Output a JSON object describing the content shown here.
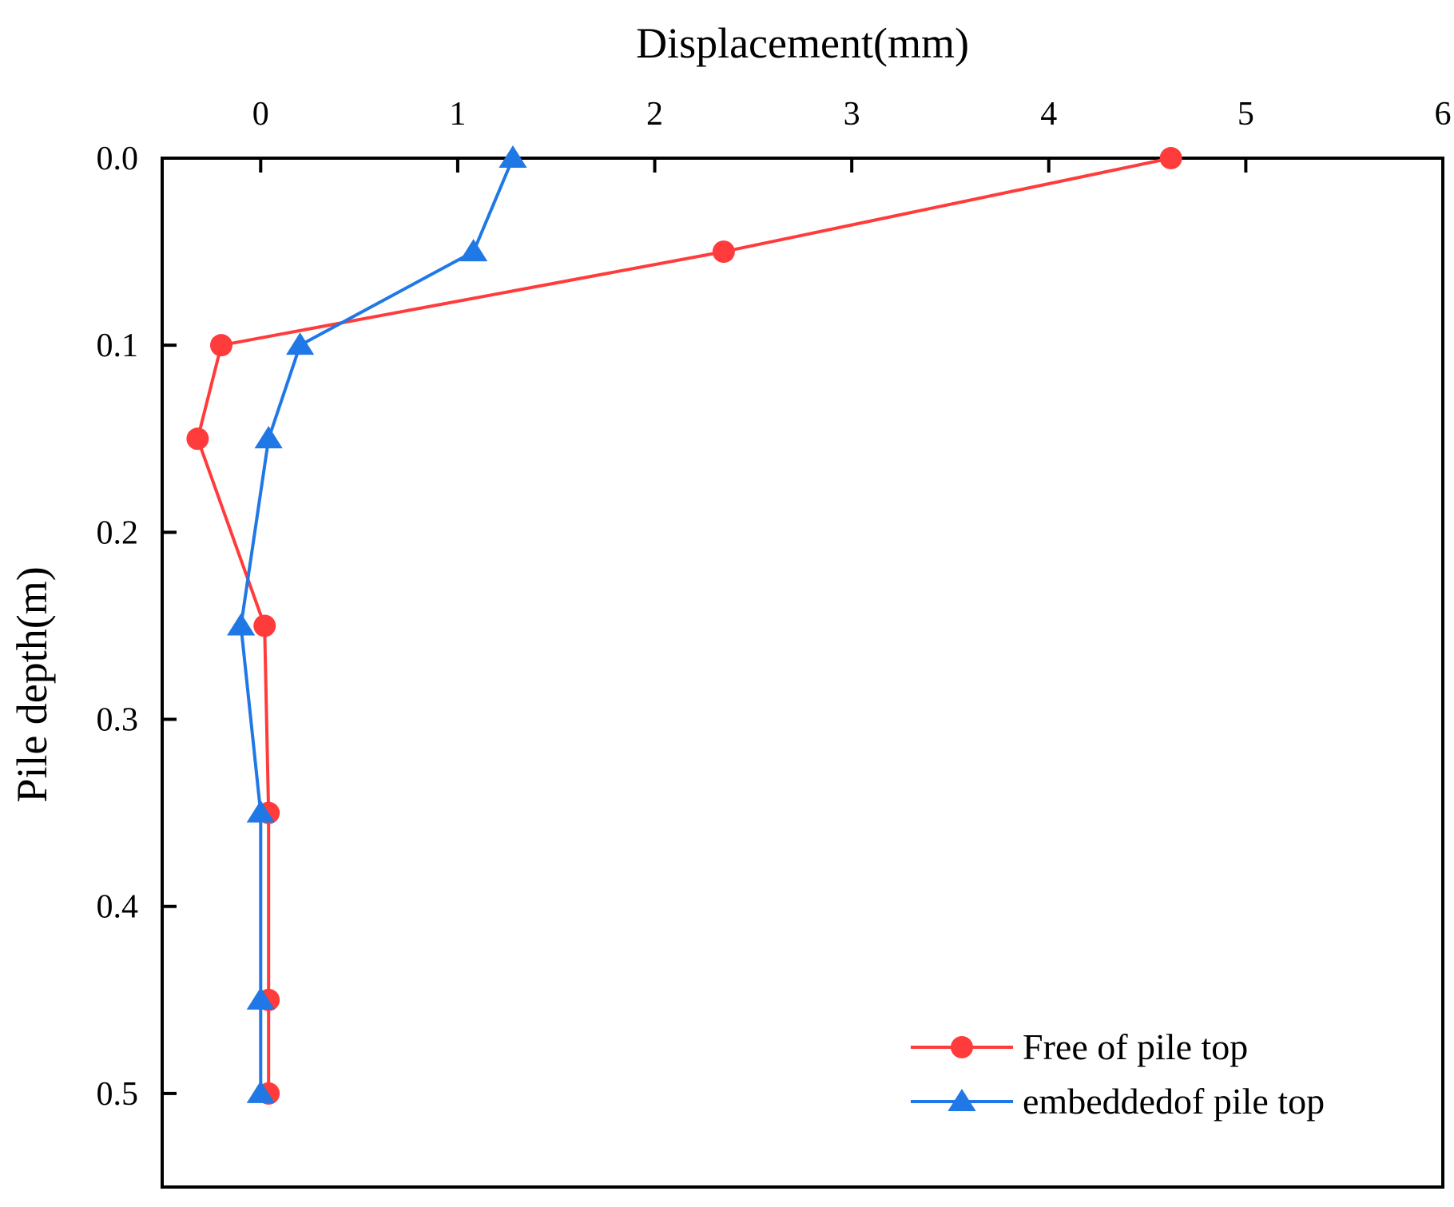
{
  "chart_data": {
    "type": "line",
    "orientation": "depth-profile",
    "xlabel": "Displacement(mm)",
    "ylabel": "Pile depth(m)",
    "xlim": [
      -0.5,
      6
    ],
    "ylim": [
      0.0,
      0.55
    ],
    "y_inverted": true,
    "x_axis_position": "top",
    "x_ticks": [
      0,
      1,
      2,
      3,
      4,
      5,
      6
    ],
    "y_ticks": [
      0.0,
      0.1,
      0.2,
      0.3,
      0.4,
      0.5
    ],
    "x_tick_labels": [
      "0",
      "1",
      "2",
      "3",
      "4",
      "5",
      "6"
    ],
    "y_tick_labels": [
      "0.0",
      "0.1",
      "0.2",
      "0.3",
      "0.4",
      "0.5"
    ],
    "legend_position": "bottom-right",
    "series": [
      {
        "name": "Free of pile top",
        "color": "#ff3b3b",
        "marker": "circle",
        "points": [
          {
            "x": 4.62,
            "y": 0.0
          },
          {
            "x": 2.35,
            "y": 0.05
          },
          {
            "x": -0.2,
            "y": 0.1
          },
          {
            "x": -0.32,
            "y": 0.15
          },
          {
            "x": 0.02,
            "y": 0.25
          },
          {
            "x": 0.04,
            "y": 0.35
          },
          {
            "x": 0.04,
            "y": 0.45
          },
          {
            "x": 0.04,
            "y": 0.5
          }
        ]
      },
      {
        "name": "embeddedof pile top",
        "color": "#1f78e6",
        "marker": "triangle",
        "points": [
          {
            "x": 1.28,
            "y": 0.0
          },
          {
            "x": 1.08,
            "y": 0.05
          },
          {
            "x": 0.2,
            "y": 0.1
          },
          {
            "x": 0.04,
            "y": 0.15
          },
          {
            "x": -0.1,
            "y": 0.25
          },
          {
            "x": 0.0,
            "y": 0.35
          },
          {
            "x": 0.0,
            "y": 0.45
          },
          {
            "x": 0.0,
            "y": 0.5
          }
        ]
      }
    ]
  }
}
